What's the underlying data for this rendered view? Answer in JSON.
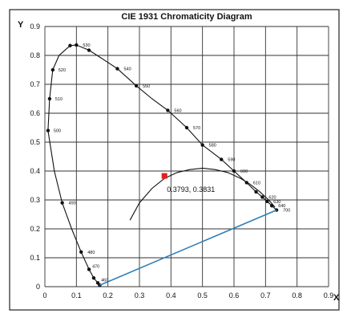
{
  "chart_data": {
    "type": "line",
    "title": "CIE 1931 Chromaticity Diagram",
    "xlabel": "X",
    "ylabel": "Y",
    "xlim": [
      0,
      0.9
    ],
    "ylim": [
      0,
      0.9
    ],
    "grid": true,
    "x_ticks": [
      "0",
      "0.1",
      "0.2",
      "0.3",
      "0.4",
      "0.5",
      "0.6",
      "0.7",
      "0.8",
      "0.9"
    ],
    "y_ticks": [
      "0",
      "0.1",
      "0.2",
      "0.3",
      "0.4",
      "0.5",
      "0.6",
      "0.7",
      "0.8",
      "0.9"
    ],
    "colors": {
      "locus": "#111111",
      "purple_line": "#2f7fb8",
      "point": "#e02020",
      "grid": "#333333"
    },
    "series": [
      {
        "name": "",
        "kind": "spectral-locus",
        "points": [
          [
            0.174,
            0.005
          ],
          [
            0.168,
            0.013
          ],
          [
            0.155,
            0.03
          ],
          [
            0.14,
            0.06
          ],
          [
            0.115,
            0.12
          ],
          [
            0.085,
            0.2
          ],
          [
            0.055,
            0.29
          ],
          [
            0.03,
            0.4
          ],
          [
            0.01,
            0.54
          ],
          [
            0.015,
            0.65
          ],
          [
            0.025,
            0.75
          ],
          [
            0.045,
            0.8
          ],
          [
            0.08,
            0.834
          ],
          [
            0.1,
            0.836
          ],
          [
            0.14,
            0.818
          ],
          [
            0.18,
            0.79
          ],
          [
            0.23,
            0.754
          ],
          [
            0.29,
            0.695
          ],
          [
            0.34,
            0.65
          ],
          [
            0.39,
            0.61
          ],
          [
            0.45,
            0.55
          ],
          [
            0.5,
            0.49
          ],
          [
            0.56,
            0.44
          ],
          [
            0.6,
            0.4
          ],
          [
            0.64,
            0.36
          ],
          [
            0.67,
            0.328
          ],
          [
            0.69,
            0.31
          ],
          [
            0.705,
            0.295
          ],
          [
            0.72,
            0.28
          ],
          [
            0.735,
            0.265
          ]
        ],
        "markers": [
          [
            0.174,
            0.005
          ],
          [
            0.168,
            0.013
          ],
          [
            0.155,
            0.03
          ],
          [
            0.14,
            0.06
          ],
          [
            0.115,
            0.12
          ],
          [
            0.055,
            0.29
          ],
          [
            0.01,
            0.54
          ],
          [
            0.015,
            0.65
          ],
          [
            0.025,
            0.75
          ],
          [
            0.08,
            0.834
          ],
          [
            0.1,
            0.836
          ],
          [
            0.14,
            0.818
          ],
          [
            0.23,
            0.754
          ],
          [
            0.29,
            0.695
          ],
          [
            0.39,
            0.61
          ],
          [
            0.45,
            0.55
          ],
          [
            0.5,
            0.49
          ],
          [
            0.56,
            0.44
          ],
          [
            0.6,
            0.4
          ],
          [
            0.64,
            0.36
          ],
          [
            0.67,
            0.328
          ],
          [
            0.69,
            0.31
          ],
          [
            0.705,
            0.295
          ],
          [
            0.72,
            0.28
          ],
          [
            0.735,
            0.265
          ]
        ]
      },
      {
        "name": "",
        "kind": "purple-line",
        "points": [
          [
            0.174,
            0.005
          ],
          [
            0.735,
            0.265
          ]
        ]
      },
      {
        "name": "",
        "kind": "planckian-locus",
        "points": [
          [
            0.27,
            0.23
          ],
          [
            0.3,
            0.29
          ],
          [
            0.34,
            0.34
          ],
          [
            0.38,
            0.375
          ],
          [
            0.42,
            0.395
          ],
          [
            0.46,
            0.405
          ],
          [
            0.5,
            0.41
          ],
          [
            0.54,
            0.405
          ],
          [
            0.58,
            0.395
          ],
          [
            0.62,
            0.375
          ],
          [
            0.65,
            0.355
          ],
          [
            0.68,
            0.33
          ],
          [
            0.71,
            0.3
          ],
          [
            0.73,
            0.275
          ]
        ]
      }
    ],
    "wavelength_labels": [
      {
        "text": "460",
        "x": 0.168,
        "y": 0.013
      },
      {
        "text": "470",
        "x": 0.14,
        "y": 0.06
      },
      {
        "text": "480",
        "x": 0.115,
        "y": 0.12
      },
      {
        "text": "490",
        "x": 0.055,
        "y": 0.29
      },
      {
        "text": "500",
        "x": 0.01,
        "y": 0.54
      },
      {
        "text": "510",
        "x": 0.015,
        "y": 0.65
      },
      {
        "text": "520",
        "x": 0.025,
        "y": 0.75
      },
      {
        "text": "530",
        "x": 0.1,
        "y": 0.836
      },
      {
        "text": "540",
        "x": 0.23,
        "y": 0.754
      },
      {
        "text": "550",
        "x": 0.29,
        "y": 0.695
      },
      {
        "text": "560",
        "x": 0.39,
        "y": 0.61
      },
      {
        "text": "570",
        "x": 0.45,
        "y": 0.55
      },
      {
        "text": "580",
        "x": 0.5,
        "y": 0.49
      },
      {
        "text": "590",
        "x": 0.56,
        "y": 0.44
      },
      {
        "text": "600",
        "x": 0.6,
        "y": 0.4
      },
      {
        "text": "610",
        "x": 0.64,
        "y": 0.36
      },
      {
        "text": "620",
        "x": 0.69,
        "y": 0.31
      },
      {
        "text": "630",
        "x": 0.705,
        "y": 0.295
      },
      {
        "text": "640",
        "x": 0.72,
        "y": 0.28
      },
      {
        "text": "700",
        "x": 0.735,
        "y": 0.265
      }
    ],
    "highlight_point": {
      "x": 0.3793,
      "y": 0.3831,
      "label": "0.3793, 0.3831"
    }
  }
}
